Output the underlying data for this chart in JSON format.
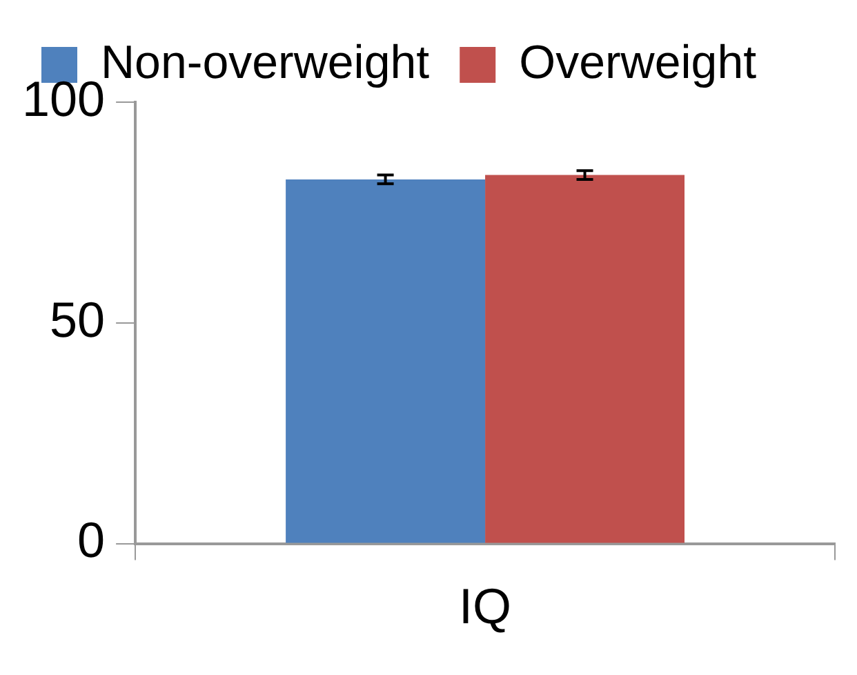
{
  "chart_data": {
    "type": "bar",
    "categories": [
      "IQ"
    ],
    "series": [
      {
        "name": "Non-overweight",
        "color": "#4f81bd",
        "values": [
          82.5
        ],
        "errors": [
          1
        ]
      },
      {
        "name": "Overweight",
        "color": "#c0504d",
        "values": [
          83.5
        ],
        "errors": [
          1
        ]
      }
    ],
    "ylim": [
      0,
      100
    ],
    "yticks": [
      0,
      50,
      100
    ],
    "grid": false,
    "legend": "top"
  }
}
